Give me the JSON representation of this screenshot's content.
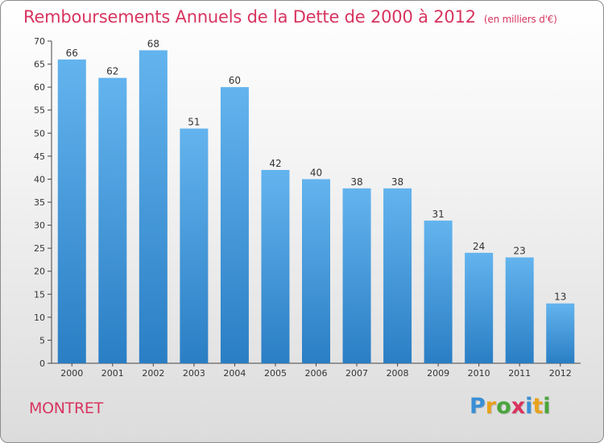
{
  "title": "Remboursements Annuels de la Dette de 2000 à 2012",
  "subtitle": "(en milliers d'€)",
  "town": "MONTRET",
  "logo": {
    "letters": [
      "P",
      "r",
      "o",
      "x",
      "i",
      "t",
      "i"
    ],
    "colors": [
      "#3a8fd6",
      "#e8a21c",
      "#4aa53c",
      "#d8345f",
      "#3a8fd6",
      "#e8a21c",
      "#4aa53c"
    ]
  },
  "colors": {
    "bar_top": "#63b4ee",
    "bar_bottom": "#2a7ec4",
    "title": "#d8345f",
    "axis": "#444444"
  },
  "chart_data": {
    "type": "bar",
    "categories": [
      "2000",
      "2001",
      "2002",
      "2003",
      "2004",
      "2005",
      "2006",
      "2007",
      "2008",
      "2009",
      "2010",
      "2011",
      "2012"
    ],
    "values": [
      66,
      62,
      68,
      51,
      60,
      42,
      40,
      38,
      38,
      31,
      24,
      23,
      13
    ],
    "ylim": [
      0,
      70
    ],
    "yticks": [
      0,
      5,
      10,
      15,
      20,
      25,
      30,
      35,
      40,
      45,
      50,
      55,
      60,
      65,
      70
    ],
    "grid": false,
    "data_labels": true
  }
}
